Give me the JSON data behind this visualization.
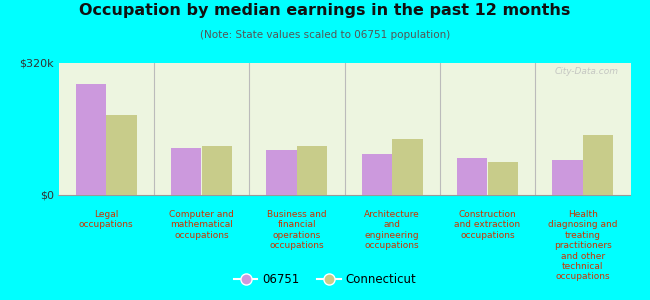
{
  "title": "Occupation by median earnings in the past 12 months",
  "subtitle": "(Note: State values scaled to 06751 population)",
  "categories": [
    "Legal\noccupations",
    "Computer and\nmathematical\noccupations",
    "Business and\nfinancial\noperations\noccupations",
    "Architecture\nand\nengineering\noccupations",
    "Construction\nand extraction\noccupations",
    "Health\ndiagnosing and\ntreating\npractitioners\nand other\ntechnical\noccupations"
  ],
  "values_06751": [
    270000,
    115000,
    108000,
    100000,
    90000,
    85000
  ],
  "values_ct": [
    195000,
    120000,
    118000,
    135000,
    80000,
    145000
  ],
  "ylim": [
    0,
    320000
  ],
  "yticks": [
    0,
    320000
  ],
  "ytick_labels": [
    "$0",
    "$320k"
  ],
  "color_06751": "#cc99dd",
  "color_ct": "#c8cc8a",
  "background_color": "#00ffff",
  "legend_06751": "06751",
  "legend_ct": "Connecticut",
  "watermark": "City-Data.com"
}
